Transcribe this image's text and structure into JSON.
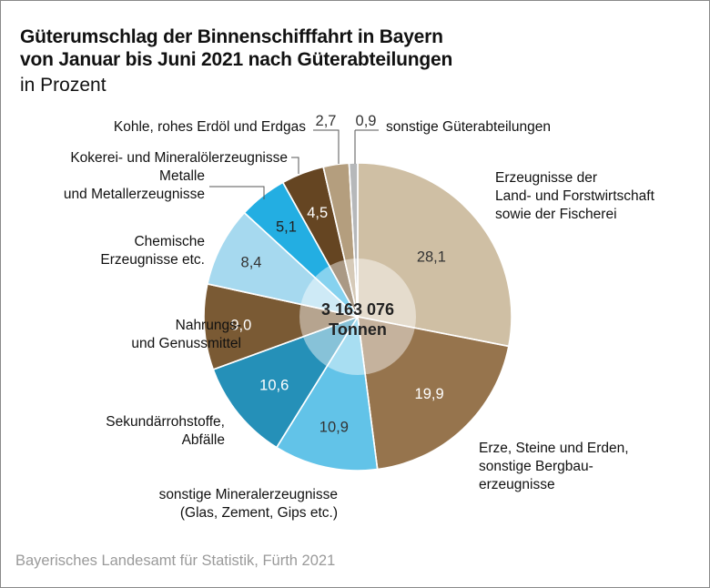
{
  "header": {
    "title_line1": "Güterumschlag der Binnenschifffahrt in Bayern",
    "title_line2": "von Januar bis Juni 2021 nach Güterabteilungen",
    "subtitle": "in Prozent"
  },
  "footer": {
    "source": "Bayerisches Landesamt für Statistik, Fürth 2021"
  },
  "chart_data": {
    "type": "pie",
    "title": "Güterumschlag der Binnenschifffahrt in Bayern von Januar bis Juni 2021 nach Güterabteilungen",
    "subtitle": "in Prozent",
    "unit": "Prozent",
    "center_label": [
      "3 163 076",
      "Tonnen"
    ],
    "start": "top",
    "direction": "clockwise",
    "slices": [
      {
        "label": [
          "Erzeugnisse der",
          "Land- und Forstwirtschaft",
          "sowie der Fischerei"
        ],
        "value": 28.1,
        "value_label": "28,1",
        "color": "#cfbfa4",
        "text_color": "#333333"
      },
      {
        "label": [
          "Erze, Steine und Erden,",
          "sonstige Bergbau-",
          "erzeugnisse"
        ],
        "value": 19.9,
        "value_label": "19,9",
        "color": "#96744d",
        "text_color": "#ffffff"
      },
      {
        "label": [
          "sonstige Mineralerzeugnisse",
          "(Glas, Zement, Gips etc.)"
        ],
        "value": 10.9,
        "value_label": "10,9",
        "color": "#62c3e8",
        "text_color": "#333333"
      },
      {
        "label": [
          "Sekundärrohstoffe,",
          "Abfälle"
        ],
        "value": 10.6,
        "value_label": "10,6",
        "color": "#2590b8",
        "text_color": "#ffffff"
      },
      {
        "label": [
          "Nahrungs-",
          "und Genussmittel"
        ],
        "value": 9.0,
        "value_label": "9,0",
        "color": "#7a5a34",
        "text_color": "#ffffff"
      },
      {
        "label": [
          "Chemische",
          "Erzeugnisse etc."
        ],
        "value": 8.4,
        "value_label": "8,4",
        "color": "#a6d9ef",
        "text_color": "#333333"
      },
      {
        "label": [
          "Metalle",
          "und Metallerzeugnisse"
        ],
        "value": 5.1,
        "value_label": "5,1",
        "color": "#23aee2",
        "text_color": "#222222"
      },
      {
        "label": [
          "Kokerei- und Mineralölerzeugnisse"
        ],
        "value": 4.5,
        "value_label": "4,5",
        "color": "#654522",
        "text_color": "#ffffff"
      },
      {
        "label": [
          "Kohle, rohes Erdöl und Erdgas"
        ],
        "value": 2.7,
        "value_label": "2,7",
        "color": "#b49e7e",
        "text_color": "#333333"
      },
      {
        "label": [
          "sonstige Güterabteilungen"
        ],
        "value": 0.9,
        "value_label": "0,9",
        "color": "#b6b8ba",
        "text_color": "#333333"
      }
    ]
  }
}
